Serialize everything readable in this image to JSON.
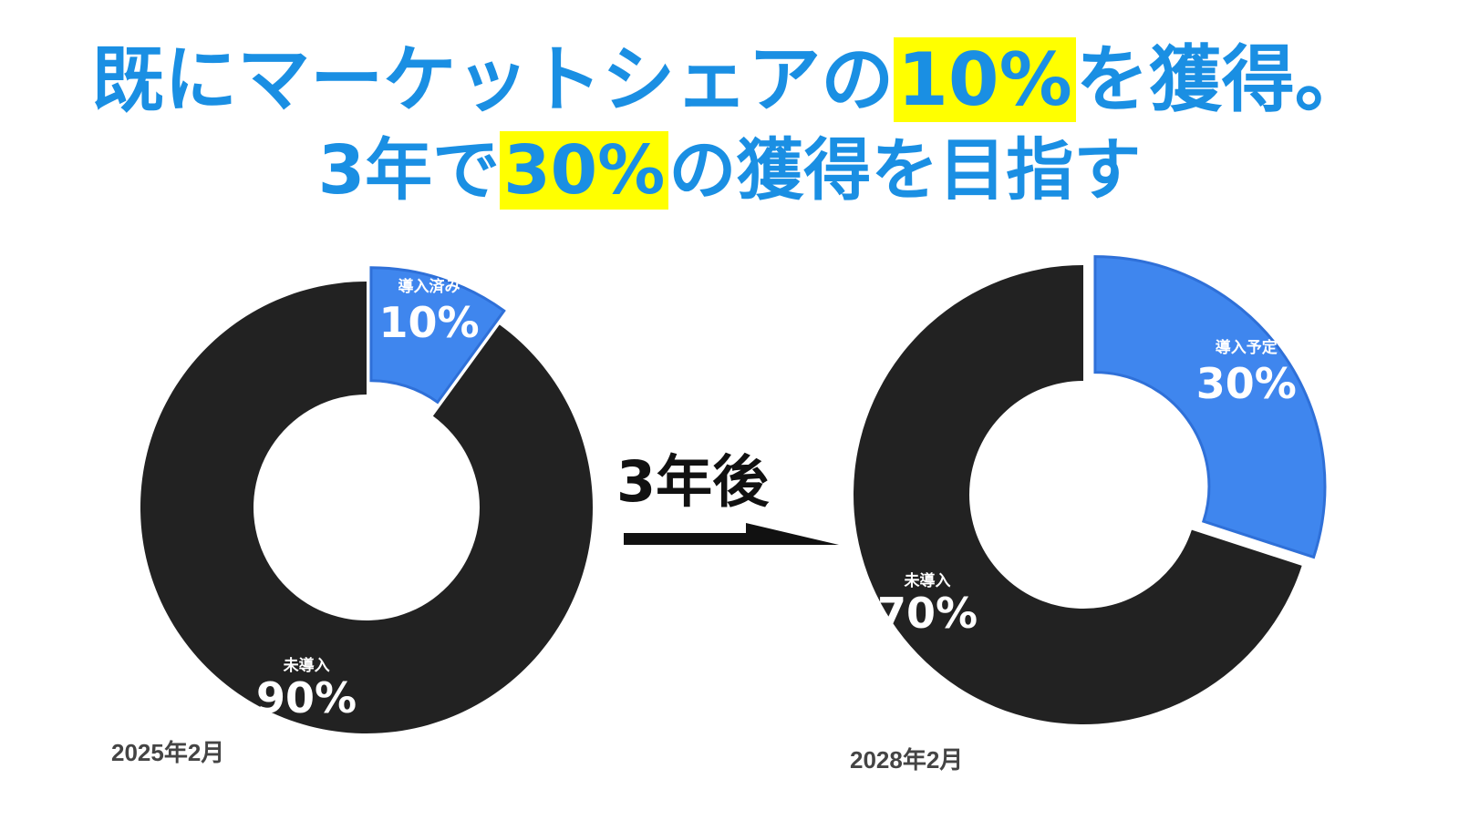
{
  "headline": {
    "line1_before": "既にマーケットシェアの",
    "line1_highlight": "10%",
    "line1_after": "を獲得。",
    "line2_before": "3年で",
    "line2_highlight": "30%",
    "line2_after": "の獲得を目指す"
  },
  "arrow_label": "3年後",
  "colors": {
    "primary": "#1a8fe3",
    "highlight": "#ffff00",
    "slice_blue": "#3f86ee",
    "slice_dark": "#222222"
  },
  "chart_data": [
    {
      "type": "pie",
      "caption": "2025年2月",
      "slices": [
        {
          "label": "導入済み",
          "value": 10,
          "value_label": "10%",
          "color": "#3f86ee",
          "exploded": true
        },
        {
          "label": "未導入",
          "value": 90,
          "value_label": "90%",
          "color": "#222222",
          "exploded": false
        }
      ]
    },
    {
      "type": "pie",
      "caption": "2028年2月",
      "slices": [
        {
          "label": "導入予定",
          "value": 30,
          "value_label": "30%",
          "color": "#3f86ee",
          "exploded": true
        },
        {
          "label": "未導入",
          "value": 70,
          "value_label": "70%",
          "color": "#222222",
          "exploded": false
        }
      ]
    }
  ]
}
